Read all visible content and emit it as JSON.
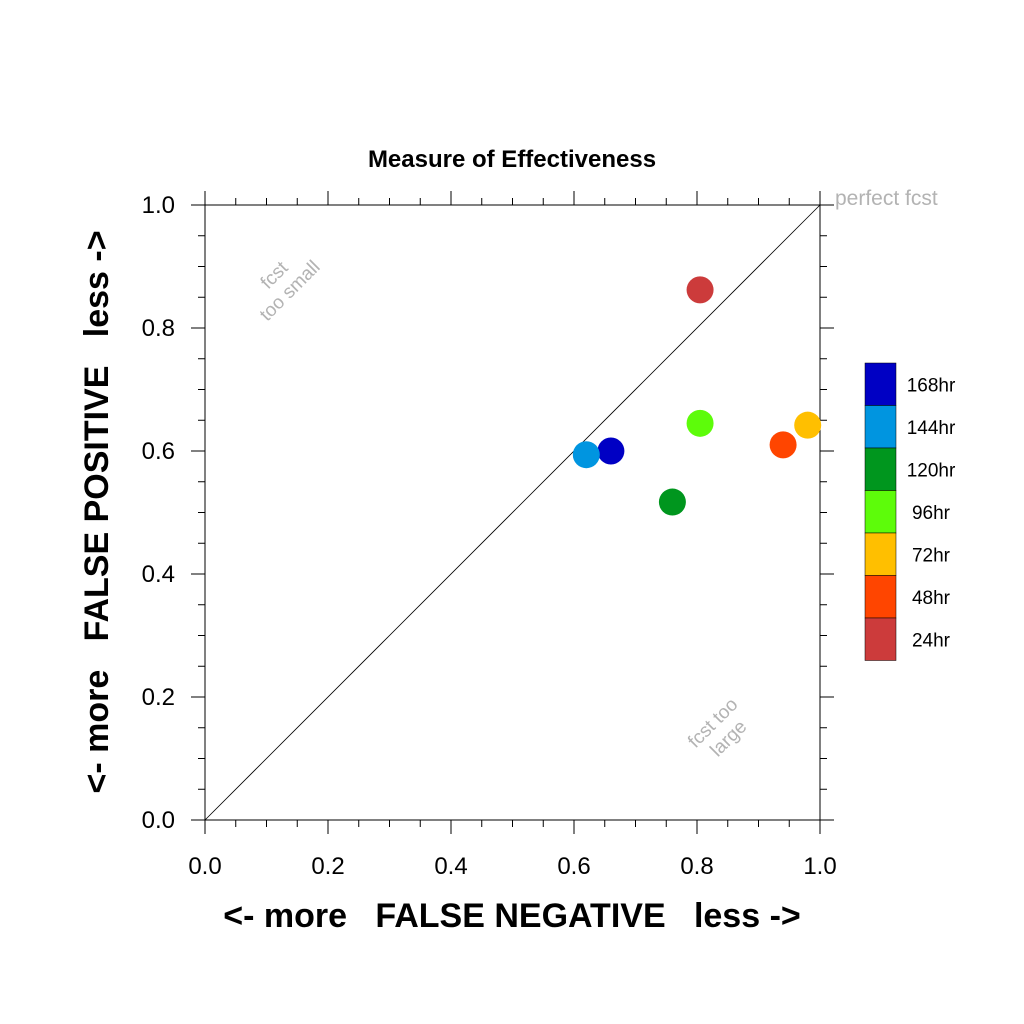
{
  "chart_data": {
    "type": "scatter",
    "title": "Measure of Effectiveness",
    "xlabel": "<- more   FALSE NEGATIVE   less ->",
    "ylabel": "<- more   FALSE POSITIVE   less ->",
    "xlim": [
      0.0,
      1.0
    ],
    "ylim": [
      0.0,
      1.0
    ],
    "x_ticks": [
      "0.0",
      "0.2",
      "0.4",
      "0.6",
      "0.8",
      "1.0"
    ],
    "y_ticks": [
      "0.0",
      "0.2",
      "0.4",
      "0.6",
      "0.8",
      "1.0"
    ],
    "grid": false,
    "diagonal_line": true,
    "annotations": {
      "perfect": "perfect fcst",
      "small_line1": "fcst",
      "small_line2": "too small",
      "large_line1": "fcst too",
      "large_line2": "large"
    },
    "legend_position": "right",
    "series": [
      {
        "name": "168hr",
        "x": 0.66,
        "y": 0.6,
        "color": "#0000c4"
      },
      {
        "name": "144hr",
        "x": 0.62,
        "y": 0.594,
        "color": "#0095e0"
      },
      {
        "name": "120hr",
        "x": 0.76,
        "y": 0.517,
        "color": "#00961e"
      },
      {
        "name": "96hr",
        "x": 0.805,
        "y": 0.645,
        "color": "#5dfc0a"
      },
      {
        "name": "72hr",
        "x": 0.98,
        "y": 0.642,
        "color": "#ffbf00"
      },
      {
        "name": "48hr",
        "x": 0.94,
        "y": 0.61,
        "color": "#ff4500"
      },
      {
        "name": "24hr",
        "x": 0.805,
        "y": 0.862,
        "color": "#cc3b3b"
      }
    ]
  }
}
